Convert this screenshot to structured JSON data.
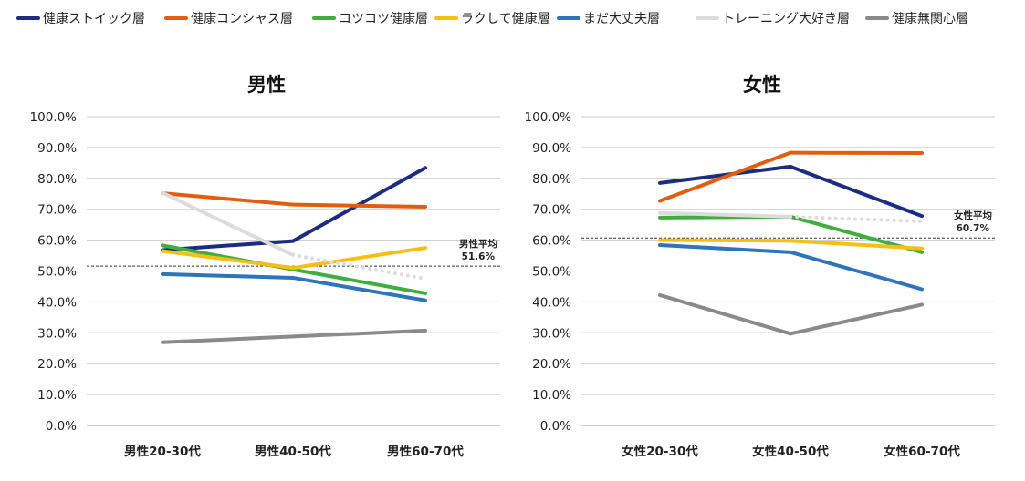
{
  "legend": [
    {
      "name": "健康ストイック層",
      "color": "#1b2d80"
    },
    {
      "name": "健康コンシャス層",
      "color": "#e35d10"
    },
    {
      "name": "コツコツ健康層",
      "color": "#3fae3f"
    },
    {
      "name": "ラクして健康層",
      "color": "#f7bf15"
    },
    {
      "name": "まだ大丈夫層",
      "color": "#2f74ba"
    },
    {
      "name": "トレーニング大好き層",
      "color": "#dcdcdc"
    },
    {
      "name": "健康無関心層",
      "color": "#8a8a8a"
    }
  ],
  "chart_data": [
    {
      "type": "line",
      "title": "男性",
      "categories": [
        "男性20-30代",
        "男性40-50代",
        "男性60-70代"
      ],
      "ylim": [
        0,
        100
      ],
      "yticks": [
        "0.0%",
        "10.0%",
        "20.0%",
        "30.0%",
        "40.0%",
        "50.0%",
        "60.0%",
        "70.0%",
        "80.0%",
        "90.0%",
        "100.0%"
      ],
      "grid": true,
      "average": {
        "label": "男性平均",
        "value_label": "51.6%",
        "value": 51.6
      },
      "series": [
        {
          "name": "健康ストイック層",
          "values": [
            56.8,
            59.7,
            83.4
          ]
        },
        {
          "name": "健康コンシャス層",
          "values": [
            75.2,
            71.5,
            70.8
          ]
        },
        {
          "name": "コツコツ健康層",
          "values": [
            58.3,
            50.5,
            42.8
          ]
        },
        {
          "name": "ラクして健康層",
          "values": [
            56.5,
            51.0,
            57.5
          ]
        },
        {
          "name": "まだ大丈夫層",
          "values": [
            49.0,
            47.8,
            40.5
          ]
        },
        {
          "name": "トレーニング大好き層",
          "values": [
            75.3,
            55.2,
            47.5
          ],
          "dotted_segments": [
            1
          ]
        },
        {
          "name": "健康無関心層",
          "values": [
            26.9,
            28.8,
            30.7
          ]
        }
      ]
    },
    {
      "type": "line",
      "title": "女性",
      "categories": [
        "女性20-30代",
        "女性40-50代",
        "女性60-70代"
      ],
      "ylim": [
        0,
        100
      ],
      "yticks": [
        "0.0%",
        "10.0%",
        "20.0%",
        "30.0%",
        "40.0%",
        "50.0%",
        "60.0%",
        "70.0%",
        "80.0%",
        "90.0%",
        "100.0%"
      ],
      "grid": true,
      "average": {
        "label": "女性平均",
        "value_label": "60.7%",
        "value": 60.7
      },
      "series": [
        {
          "name": "健康ストイック層",
          "values": [
            78.5,
            83.8,
            67.8
          ]
        },
        {
          "name": "健康コンシャス層",
          "values": [
            72.7,
            88.3,
            88.2
          ]
        },
        {
          "name": "コツコツ健康層",
          "values": [
            67.3,
            67.6,
            56.1
          ]
        },
        {
          "name": "ラクして健康層",
          "values": [
            60.0,
            59.8,
            57.3
          ]
        },
        {
          "name": "まだ大丈夫層",
          "values": [
            58.4,
            56.1,
            44.1
          ]
        },
        {
          "name": "トレーニング大好き層",
          "values": [
            68.8,
            67.6,
            66.1
          ],
          "dotted_segments": [
            1
          ]
        },
        {
          "name": "健康無関心層",
          "values": [
            42.2,
            29.7,
            39.1
          ]
        }
      ]
    }
  ]
}
